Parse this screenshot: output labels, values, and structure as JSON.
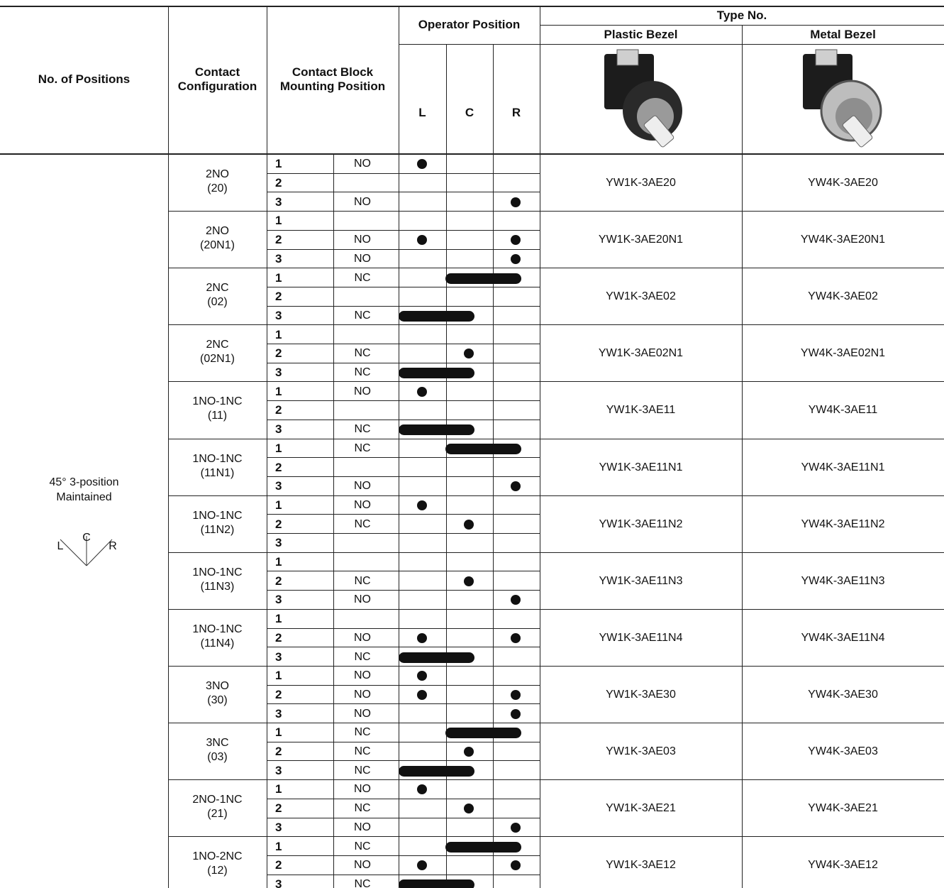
{
  "header": {
    "positions": "No. of Positions",
    "config": "Contact Configuration",
    "mounting": "Contact Block Mounting Position",
    "operator": "Operator Position",
    "type_no": "Type No.",
    "plastic": "Plastic Bezel",
    "metal": "Metal Bezel",
    "L": "L",
    "C": "C",
    "R": "R"
  },
  "positions_cell": {
    "line1": "45° 3-position",
    "line2": "Maintained",
    "diagram": {
      "L": "L",
      "C": "C",
      "R": "R"
    }
  },
  "groups": [
    {
      "config": "2NO",
      "code": "(20)",
      "plastic": "YW1K-3AE20",
      "metal": "YW4K-3AE20",
      "rows": [
        {
          "block": 1,
          "contact": "NO",
          "marks": [
            "L"
          ]
        },
        {
          "block": 2,
          "contact": null,
          "marks": []
        },
        {
          "block": 3,
          "contact": "NO",
          "marks": [
            "R"
          ]
        }
      ]
    },
    {
      "config": "2NO",
      "code": "(20N1)",
      "plastic": "YW1K-3AE20N1",
      "metal": "YW4K-3AE20N1",
      "rows": [
        {
          "block": 1,
          "contact": null,
          "marks": []
        },
        {
          "block": 2,
          "contact": "NO",
          "marks": [
            "L",
            "R"
          ]
        },
        {
          "block": 3,
          "contact": "NO",
          "marks": [
            "R"
          ]
        }
      ]
    },
    {
      "config": "2NC",
      "code": "(02)",
      "plastic": "YW1K-3AE02",
      "metal": "YW4K-3AE02",
      "rows": [
        {
          "block": 1,
          "contact": "NC",
          "marks": [
            "CR"
          ]
        },
        {
          "block": 2,
          "contact": null,
          "marks": []
        },
        {
          "block": 3,
          "contact": "NC",
          "marks": [
            "LC"
          ]
        }
      ]
    },
    {
      "config": "2NC",
      "code": "(02N1)",
      "plastic": "YW1K-3AE02N1",
      "metal": "YW4K-3AE02N1",
      "rows": [
        {
          "block": 1,
          "contact": null,
          "marks": []
        },
        {
          "block": 2,
          "contact": "NC",
          "marks": [
            "C"
          ]
        },
        {
          "block": 3,
          "contact": "NC",
          "marks": [
            "LC"
          ]
        }
      ]
    },
    {
      "config": "1NO-1NC",
      "code": "(11)",
      "plastic": "YW1K-3AE11",
      "metal": "YW4K-3AE11",
      "rows": [
        {
          "block": 1,
          "contact": "NO",
          "marks": [
            "L"
          ]
        },
        {
          "block": 2,
          "contact": null,
          "marks": []
        },
        {
          "block": 3,
          "contact": "NC",
          "marks": [
            "LC"
          ]
        }
      ]
    },
    {
      "config": "1NO-1NC",
      "code": "(11N1)",
      "plastic": "YW1K-3AE11N1",
      "metal": "YW4K-3AE11N1",
      "rows": [
        {
          "block": 1,
          "contact": "NC",
          "marks": [
            "CR"
          ]
        },
        {
          "block": 2,
          "contact": null,
          "marks": []
        },
        {
          "block": 3,
          "contact": "NO",
          "marks": [
            "R"
          ]
        }
      ]
    },
    {
      "config": "1NO-1NC",
      "code": "(11N2)",
      "plastic": "YW1K-3AE11N2",
      "metal": "YW4K-3AE11N2",
      "rows": [
        {
          "block": 1,
          "contact": "NO",
          "marks": [
            "L"
          ]
        },
        {
          "block": 2,
          "contact": "NC",
          "marks": [
            "C"
          ]
        },
        {
          "block": 3,
          "contact": null,
          "marks": []
        }
      ]
    },
    {
      "config": "1NO-1NC",
      "code": "(11N3)",
      "plastic": "YW1K-3AE11N3",
      "metal": "YW4K-3AE11N3",
      "rows": [
        {
          "block": 1,
          "contact": null,
          "marks": []
        },
        {
          "block": 2,
          "contact": "NC",
          "marks": [
            "C"
          ]
        },
        {
          "block": 3,
          "contact": "NO",
          "marks": [
            "R"
          ]
        }
      ]
    },
    {
      "config": "1NO-1NC",
      "code": "(11N4)",
      "plastic": "YW1K-3AE11N4",
      "metal": "YW4K-3AE11N4",
      "rows": [
        {
          "block": 1,
          "contact": null,
          "marks": []
        },
        {
          "block": 2,
          "contact": "NO",
          "marks": [
            "L",
            "R"
          ]
        },
        {
          "block": 3,
          "contact": "NC",
          "marks": [
            "LC"
          ]
        }
      ]
    },
    {
      "config": "3NO",
      "code": "(30)",
      "plastic": "YW1K-3AE30",
      "metal": "YW4K-3AE30",
      "rows": [
        {
          "block": 1,
          "contact": "NO",
          "marks": [
            "L"
          ]
        },
        {
          "block": 2,
          "contact": "NO",
          "marks": [
            "L",
            "R"
          ]
        },
        {
          "block": 3,
          "contact": "NO",
          "marks": [
            "R"
          ]
        }
      ]
    },
    {
      "config": "3NC",
      "code": "(03)",
      "plastic": "YW1K-3AE03",
      "metal": "YW4K-3AE03",
      "rows": [
        {
          "block": 1,
          "contact": "NC",
          "marks": [
            "CR"
          ]
        },
        {
          "block": 2,
          "contact": "NC",
          "marks": [
            "C"
          ]
        },
        {
          "block": 3,
          "contact": "NC",
          "marks": [
            "LC"
          ]
        }
      ]
    },
    {
      "config": "2NO-1NC",
      "code": "(21)",
      "plastic": "YW1K-3AE21",
      "metal": "YW4K-3AE21",
      "rows": [
        {
          "block": 1,
          "contact": "NO",
          "marks": [
            "L"
          ]
        },
        {
          "block": 2,
          "contact": "NC",
          "marks": [
            "C"
          ]
        },
        {
          "block": 3,
          "contact": "NO",
          "marks": [
            "R"
          ]
        }
      ]
    },
    {
      "config": "1NO-2NC",
      "code": "(12)",
      "plastic": "YW1K-3AE12",
      "metal": "YW4K-3AE12",
      "rows": [
        {
          "block": 1,
          "contact": "NC",
          "marks": [
            "CR"
          ]
        },
        {
          "block": 2,
          "contact": "NO",
          "marks": [
            "L",
            "R"
          ]
        },
        {
          "block": 3,
          "contact": "NC",
          "marks": [
            "LC"
          ]
        }
      ]
    }
  ]
}
